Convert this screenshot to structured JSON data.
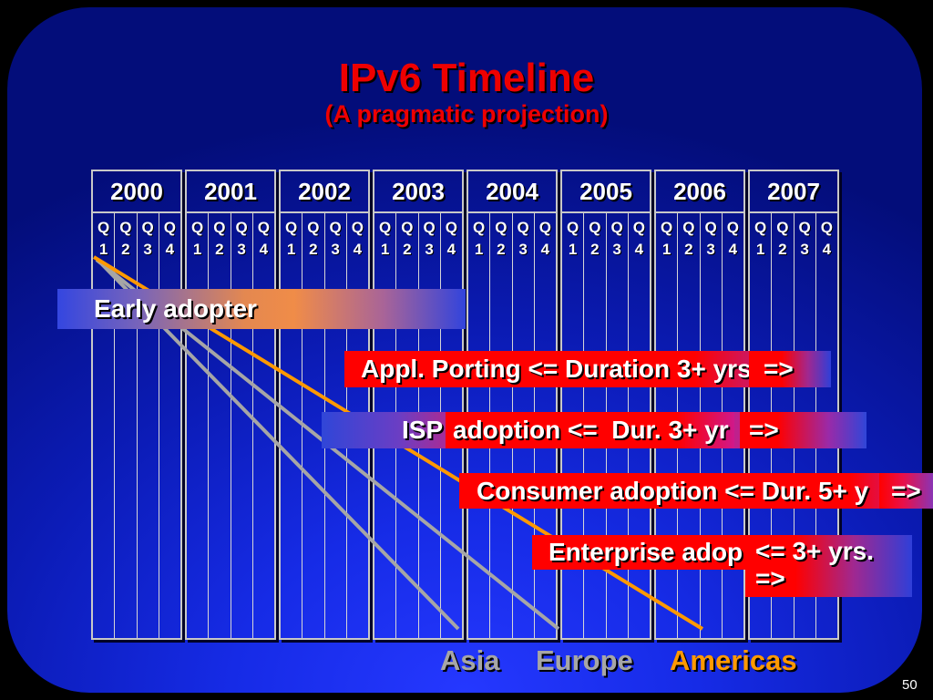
{
  "slide": {
    "title": "IPv6 Timeline",
    "subtitle": "(A pragmatic projection)",
    "page_number": "50"
  },
  "timeline": {
    "years": [
      "2000",
      "2001",
      "2002",
      "2003",
      "2004",
      "2005",
      "2006",
      "2007"
    ],
    "quarters": [
      {
        "letter": "Q",
        "number": "1"
      },
      {
        "letter": "Q",
        "number": "2"
      },
      {
        "letter": "Q",
        "number": "3"
      },
      {
        "letter": "Q",
        "number": "4"
      }
    ]
  },
  "phases": {
    "early_adopter": {
      "label": "Early adopter"
    },
    "appl_porting": {
      "label": "Appl. Porting <= Duration 3+ yrs",
      "arrow": "=>"
    },
    "isp_adoption": {
      "prefix": "ISP",
      "label": "adoption <=  Dur. 3+ yr",
      "arrow": "=>"
    },
    "consumer_adoption": {
      "label": "Consumer adoption <= Dur. 5+ y",
      "arrow": "=>"
    },
    "enterprise_adoption": {
      "label": "Enterprise adop",
      "duration": "<= 3+ yrs.",
      "arrow": "=>"
    }
  },
  "regions": [
    {
      "name": "Asia",
      "color": "#a6a6a6"
    },
    {
      "name": "Europe",
      "color": "#a6a6a6"
    },
    {
      "name": "Americas",
      "color": "#ff9900"
    }
  ],
  "colors": {
    "title": "#ee0000",
    "phase_bar": "#ff0000",
    "panel": "#162be6"
  }
}
